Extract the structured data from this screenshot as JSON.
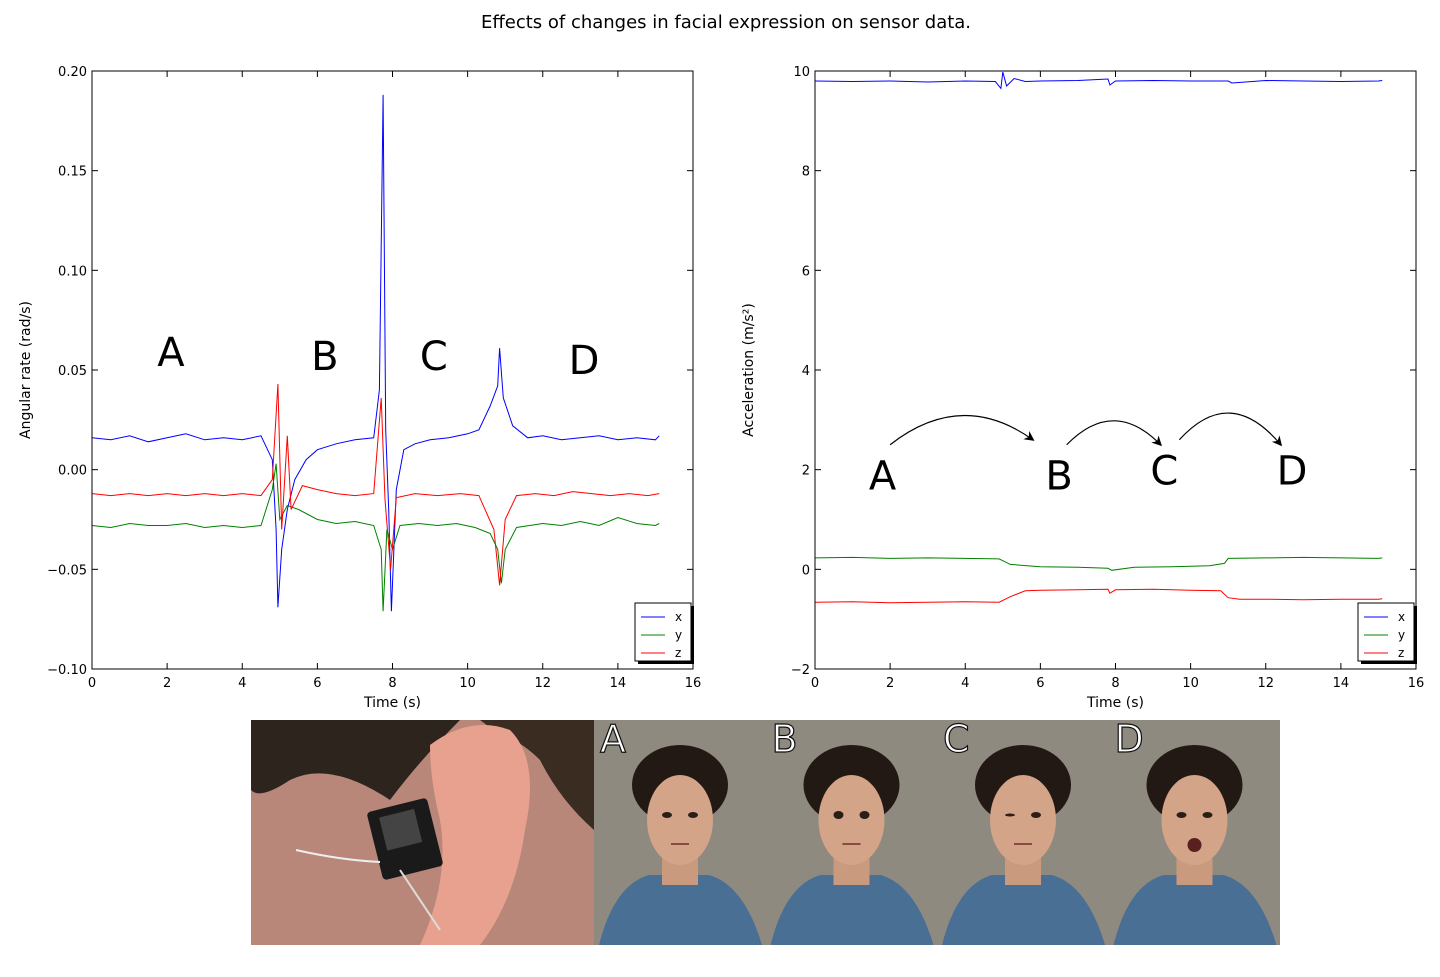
{
  "title": "Effects of changes in facial expression on sensor data.",
  "colors": {
    "x": "#0000ff",
    "y": "#008000",
    "z": "#ff0000",
    "axis": "#000000"
  },
  "chart_data": [
    {
      "type": "line",
      "xlabel": "Time (s)",
      "ylabel": "Angular rate (rad/s)",
      "xlim": [
        0,
        16
      ],
      "ylim": [
        -0.1,
        0.2
      ],
      "xticks": [
        "0",
        "2",
        "4",
        "6",
        "8",
        "10",
        "12",
        "14",
        "16"
      ],
      "yticks": [
        "−0.10",
        "−0.05",
        "0.00",
        "0.05",
        "0.10",
        "0.15",
        "0.20"
      ],
      "grid": false,
      "legend_position": "bottom-right",
      "annotations": [
        {
          "text": "A",
          "x": 2.1,
          "y": 0.052
        },
        {
          "text": "B",
          "x": 6.2,
          "y": 0.05
        },
        {
          "text": "C",
          "x": 9.1,
          "y": 0.05
        },
        {
          "text": "D",
          "x": 13.1,
          "y": 0.048
        }
      ],
      "series": [
        {
          "name": "x",
          "color": "#0000ff",
          "values": [
            [
              0,
              0.016
            ],
            [
              0.5,
              0.015
            ],
            [
              1.0,
              0.017
            ],
            [
              1.5,
              0.014
            ],
            [
              2.0,
              0.016
            ],
            [
              2.5,
              0.018
            ],
            [
              3.0,
              0.015
            ],
            [
              3.5,
              0.016
            ],
            [
              4.0,
              0.015
            ],
            [
              4.5,
              0.017
            ],
            [
              4.8,
              0.005
            ],
            [
              4.9,
              -0.03
            ],
            [
              4.95,
              -0.069
            ],
            [
              5.05,
              -0.04
            ],
            [
              5.2,
              -0.02
            ],
            [
              5.4,
              -0.005
            ],
            [
              5.7,
              0.005
            ],
            [
              6.0,
              0.01
            ],
            [
              6.5,
              0.013
            ],
            [
              7.0,
              0.015
            ],
            [
              7.5,
              0.016
            ],
            [
              7.65,
              0.04
            ],
            [
              7.75,
              0.188
            ],
            [
              7.82,
              0.02
            ],
            [
              7.9,
              -0.02
            ],
            [
              7.97,
              -0.071
            ],
            [
              8.1,
              -0.01
            ],
            [
              8.3,
              0.01
            ],
            [
              8.6,
              0.013
            ],
            [
              9.0,
              0.015
            ],
            [
              9.5,
              0.016
            ],
            [
              10.0,
              0.018
            ],
            [
              10.3,
              0.02
            ],
            [
              10.6,
              0.032
            ],
            [
              10.8,
              0.042
            ],
            [
              10.85,
              0.061
            ],
            [
              10.95,
              0.036
            ],
            [
              11.2,
              0.022
            ],
            [
              11.6,
              0.016
            ],
            [
              12.0,
              0.017
            ],
            [
              12.5,
              0.015
            ],
            [
              13.0,
              0.016
            ],
            [
              13.5,
              0.017
            ],
            [
              14.0,
              0.015
            ],
            [
              14.5,
              0.016
            ],
            [
              15.0,
              0.015
            ],
            [
              15.1,
              0.017
            ]
          ]
        },
        {
          "name": "y",
          "color": "#008000",
          "values": [
            [
              0,
              -0.028
            ],
            [
              0.5,
              -0.029
            ],
            [
              1.0,
              -0.027
            ],
            [
              1.5,
              -0.028
            ],
            [
              2.0,
              -0.028
            ],
            [
              2.5,
              -0.027
            ],
            [
              3.0,
              -0.029
            ],
            [
              3.5,
              -0.028
            ],
            [
              4.0,
              -0.029
            ],
            [
              4.5,
              -0.028
            ],
            [
              4.8,
              -0.01
            ],
            [
              4.9,
              0.003
            ],
            [
              5.0,
              -0.025
            ],
            [
              5.2,
              -0.018
            ],
            [
              5.5,
              -0.02
            ],
            [
              6.0,
              -0.025
            ],
            [
              6.5,
              -0.027
            ],
            [
              7.0,
              -0.026
            ],
            [
              7.5,
              -0.028
            ],
            [
              7.7,
              -0.04
            ],
            [
              7.75,
              -0.071
            ],
            [
              7.85,
              -0.03
            ],
            [
              8.0,
              -0.04
            ],
            [
              8.2,
              -0.028
            ],
            [
              8.7,
              -0.027
            ],
            [
              9.2,
              -0.028
            ],
            [
              9.7,
              -0.027
            ],
            [
              10.2,
              -0.029
            ],
            [
              10.6,
              -0.032
            ],
            [
              10.8,
              -0.04
            ],
            [
              10.9,
              -0.057
            ],
            [
              11.0,
              -0.04
            ],
            [
              11.3,
              -0.029
            ],
            [
              12.0,
              -0.027
            ],
            [
              12.5,
              -0.028
            ],
            [
              13.0,
              -0.026
            ],
            [
              13.5,
              -0.028
            ],
            [
              14.0,
              -0.024
            ],
            [
              14.5,
              -0.027
            ],
            [
              15.0,
              -0.028
            ],
            [
              15.1,
              -0.027
            ]
          ]
        },
        {
          "name": "z",
          "color": "#ff0000",
          "values": [
            [
              0,
              -0.012
            ],
            [
              0.5,
              -0.013
            ],
            [
              1.0,
              -0.012
            ],
            [
              1.5,
              -0.013
            ],
            [
              2.0,
              -0.012
            ],
            [
              2.5,
              -0.013
            ],
            [
              3.0,
              -0.012
            ],
            [
              3.5,
              -0.013
            ],
            [
              4.0,
              -0.012
            ],
            [
              4.5,
              -0.013
            ],
            [
              4.8,
              -0.005
            ],
            [
              4.95,
              0.043
            ],
            [
              5.05,
              -0.03
            ],
            [
              5.2,
              0.017
            ],
            [
              5.3,
              -0.02
            ],
            [
              5.6,
              -0.008
            ],
            [
              6.0,
              -0.01
            ],
            [
              6.5,
              -0.012
            ],
            [
              7.0,
              -0.013
            ],
            [
              7.5,
              -0.012
            ],
            [
              7.7,
              0.036
            ],
            [
              7.8,
              -0.015
            ],
            [
              7.95,
              -0.05
            ],
            [
              8.1,
              -0.014
            ],
            [
              8.6,
              -0.012
            ],
            [
              9.2,
              -0.013
            ],
            [
              9.8,
              -0.012
            ],
            [
              10.3,
              -0.013
            ],
            [
              10.7,
              -0.03
            ],
            [
              10.85,
              -0.058
            ],
            [
              11.0,
              -0.025
            ],
            [
              11.3,
              -0.013
            ],
            [
              11.8,
              -0.012
            ],
            [
              12.3,
              -0.013
            ],
            [
              12.8,
              -0.011
            ],
            [
              13.3,
              -0.012
            ],
            [
              13.8,
              -0.013
            ],
            [
              14.3,
              -0.012
            ],
            [
              14.8,
              -0.013
            ],
            [
              15.1,
              -0.012
            ]
          ]
        }
      ]
    },
    {
      "type": "line",
      "xlabel": "Time (s)",
      "ylabel": "Acceleration (m/s²)",
      "xlim": [
        0,
        16
      ],
      "ylim": [
        -2,
        10
      ],
      "xticks": [
        "0",
        "2",
        "4",
        "6",
        "8",
        "10",
        "12",
        "14",
        "16"
      ],
      "yticks": [
        "−2",
        "0",
        "2",
        "4",
        "6",
        "8",
        "10"
      ],
      "grid": false,
      "legend_position": "bottom-right",
      "annotations": [
        {
          "text": "A",
          "x": 1.8,
          "y": 1.6
        },
        {
          "text": "B",
          "x": 6.5,
          "y": 1.6
        },
        {
          "text": "C",
          "x": 9.3,
          "y": 1.7
        },
        {
          "text": "D",
          "x": 12.7,
          "y": 1.7
        }
      ],
      "arrows": [
        {
          "from": [
            2.0,
            2.5
          ],
          "to": [
            5.8,
            2.6
          ],
          "peak": 3.2
        },
        {
          "from": [
            6.7,
            2.5
          ],
          "to": [
            9.2,
            2.5
          ],
          "peak": 3.1
        },
        {
          "from": [
            9.7,
            2.6
          ],
          "to": [
            12.4,
            2.5
          ],
          "peak": 3.3
        }
      ],
      "series": [
        {
          "name": "x",
          "color": "#0000ff",
          "values": [
            [
              0,
              9.8
            ],
            [
              1,
              9.79
            ],
            [
              2,
              9.8
            ],
            [
              3,
              9.78
            ],
            [
              4,
              9.8
            ],
            [
              4.8,
              9.79
            ],
            [
              4.95,
              9.65
            ],
            [
              5.0,
              9.98
            ],
            [
              5.1,
              9.7
            ],
            [
              5.3,
              9.85
            ],
            [
              5.6,
              9.79
            ],
            [
              6,
              9.8
            ],
            [
              7,
              9.81
            ],
            [
              7.8,
              9.84
            ],
            [
              7.85,
              9.72
            ],
            [
              8,
              9.8
            ],
            [
              9,
              9.81
            ],
            [
              10,
              9.8
            ],
            [
              11,
              9.8
            ],
            [
              11.1,
              9.76
            ],
            [
              12,
              9.81
            ],
            [
              13,
              9.8
            ],
            [
              14,
              9.79
            ],
            [
              15,
              9.8
            ],
            [
              15.1,
              9.81
            ]
          ]
        },
        {
          "name": "y",
          "color": "#008000",
          "values": [
            [
              0,
              0.23
            ],
            [
              1,
              0.24
            ],
            [
              2,
              0.22
            ],
            [
              3,
              0.23
            ],
            [
              4,
              0.22
            ],
            [
              4.9,
              0.21
            ],
            [
              5.2,
              0.1
            ],
            [
              6,
              0.05
            ],
            [
              7,
              0.04
            ],
            [
              7.8,
              0.02
            ],
            [
              7.9,
              -0.02
            ],
            [
              8.5,
              0.04
            ],
            [
              9.5,
              0.05
            ],
            [
              10.5,
              0.07
            ],
            [
              10.9,
              0.12
            ],
            [
              11.0,
              0.22
            ],
            [
              12,
              0.23
            ],
            [
              13,
              0.24
            ],
            [
              14,
              0.23
            ],
            [
              15,
              0.22
            ],
            [
              15.1,
              0.23
            ]
          ]
        },
        {
          "name": "z",
          "color": "#ff0000",
          "values": [
            [
              0,
              -0.66
            ],
            [
              1,
              -0.65
            ],
            [
              2,
              -0.67
            ],
            [
              3,
              -0.66
            ],
            [
              4,
              -0.65
            ],
            [
              4.9,
              -0.66
            ],
            [
              5.2,
              -0.55
            ],
            [
              5.6,
              -0.43
            ],
            [
              6,
              -0.42
            ],
            [
              7,
              -0.41
            ],
            [
              7.8,
              -0.4
            ],
            [
              7.85,
              -0.48
            ],
            [
              8,
              -0.41
            ],
            [
              9,
              -0.4
            ],
            [
              10,
              -0.42
            ],
            [
              10.8,
              -0.43
            ],
            [
              11.0,
              -0.57
            ],
            [
              11.3,
              -0.6
            ],
            [
              12,
              -0.6
            ],
            [
              13,
              -0.61
            ],
            [
              14,
              -0.6
            ],
            [
              15,
              -0.6
            ],
            [
              15.1,
              -0.59
            ]
          ]
        }
      ]
    }
  ],
  "photos": {
    "ear_label": "",
    "faces": [
      {
        "label": "A"
      },
      {
        "label": "B"
      },
      {
        "label": "C"
      },
      {
        "label": "D"
      }
    ]
  }
}
